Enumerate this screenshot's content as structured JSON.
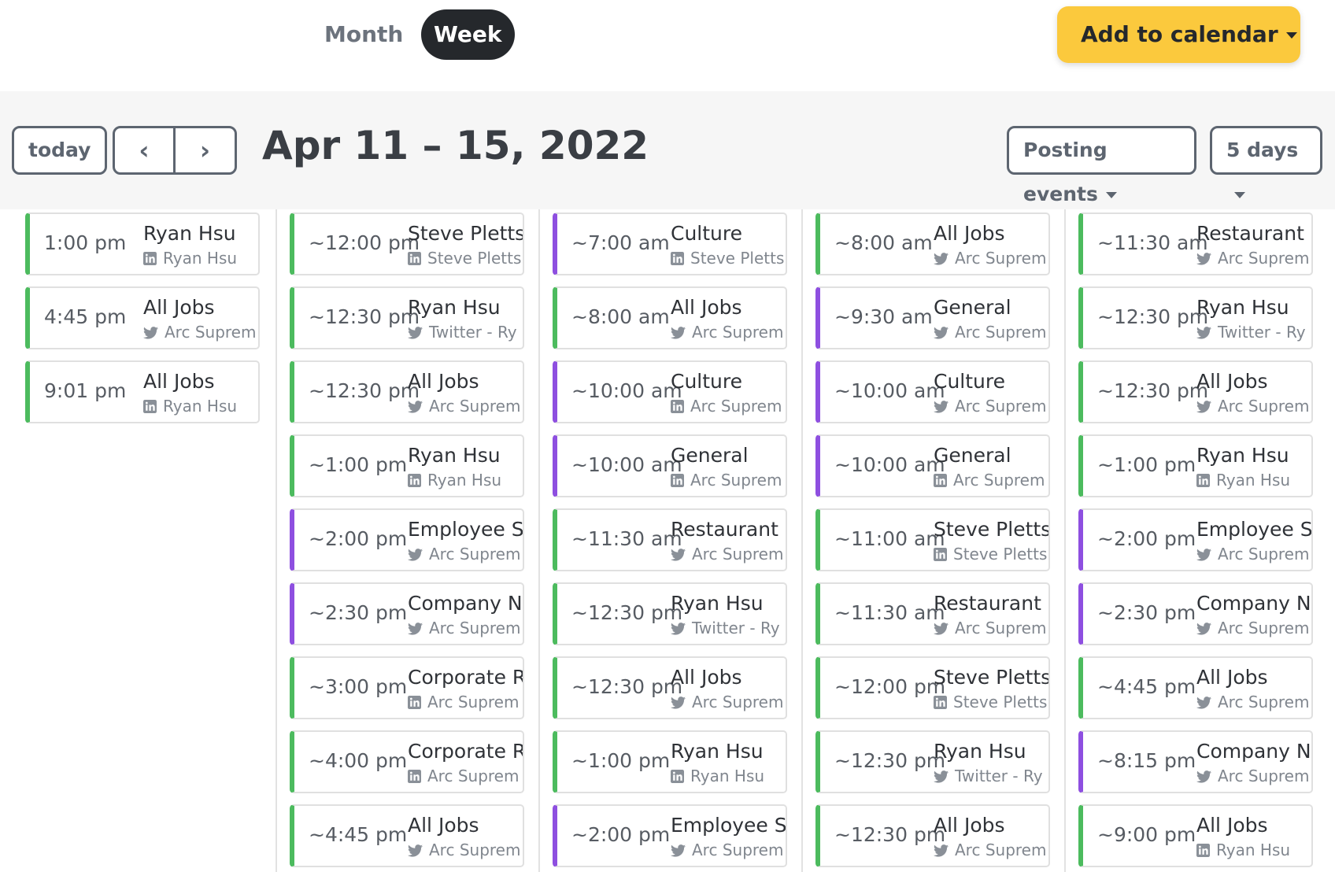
{
  "header": {
    "tabs": [
      "Month",
      "Week"
    ],
    "active_tab": 1,
    "add_button": "Add to calendar"
  },
  "toolbar": {
    "today": "today",
    "prev": "‹",
    "next": "›",
    "range": "Apr 11 – 15, 2022",
    "filter": "Posting events",
    "view": "5 days"
  },
  "columns": [
    {
      "events": [
        {
          "time": "1:00 pm",
          "title": "Ryan Hsu",
          "icon": "linkedin",
          "account": "Ryan Hsu",
          "color": "#4cbb5e"
        },
        {
          "time": "4:45 pm",
          "title": "All Jobs",
          "icon": "twitter",
          "account": "Arc Suprem",
          "color": "#4cbb5e"
        },
        {
          "time": "9:01 pm",
          "title": "All Jobs",
          "icon": "linkedin",
          "account": "Ryan Hsu",
          "color": "#4cbb5e"
        }
      ]
    },
    {
      "events": [
        {
          "time": "~12:00 pm",
          "title": "Steve Pletts",
          "icon": "linkedin",
          "account": "Steve Pletts",
          "color": "#4cbb5e"
        },
        {
          "time": "~12:30 pm",
          "title": "Ryan Hsu",
          "icon": "twitter",
          "account": "Twitter - Ry",
          "color": "#4cbb5e"
        },
        {
          "time": "~12:30 pm",
          "title": "All Jobs",
          "icon": "twitter",
          "account": "Arc Suprem",
          "color": "#4cbb5e"
        },
        {
          "time": "~1:00 pm",
          "title": "Ryan Hsu",
          "icon": "linkedin",
          "account": "Ryan Hsu",
          "color": "#4cbb5e"
        },
        {
          "time": "~2:00 pm",
          "title": "Employee S",
          "icon": "twitter",
          "account": "Arc Suprem",
          "color": "#8e4fe0"
        },
        {
          "time": "~2:30 pm",
          "title": "Company N",
          "icon": "twitter",
          "account": "Arc Suprem",
          "color": "#8e4fe0"
        },
        {
          "time": "~3:00 pm",
          "title": "Corporate R",
          "icon": "linkedin",
          "account": "Arc Suprem",
          "color": "#4cbb5e"
        },
        {
          "time": "~4:00 pm",
          "title": "Corporate R",
          "icon": "linkedin",
          "account": "Arc Suprem",
          "color": "#4cbb5e"
        },
        {
          "time": "~4:45 pm",
          "title": "All Jobs",
          "icon": "twitter",
          "account": "Arc Suprem",
          "color": "#4cbb5e"
        }
      ]
    },
    {
      "events": [
        {
          "time": "~7:00 am",
          "title": "Culture",
          "icon": "linkedin",
          "account": "Steve Pletts",
          "color": "#8e4fe0"
        },
        {
          "time": "~8:00 am",
          "title": "All Jobs",
          "icon": "twitter",
          "account": "Arc Suprem",
          "color": "#4cbb5e"
        },
        {
          "time": "~10:00 am",
          "title": "Culture",
          "icon": "linkedin",
          "account": "Arc Suprem",
          "color": "#8e4fe0"
        },
        {
          "time": "~10:00 am",
          "title": "General",
          "icon": "linkedin",
          "account": "Arc Suprem",
          "color": "#8e4fe0"
        },
        {
          "time": "~11:30 am",
          "title": "Restaurant",
          "icon": "twitter",
          "account": "Arc Suprem",
          "color": "#4cbb5e"
        },
        {
          "time": "~12:30 pm",
          "title": "Ryan Hsu",
          "icon": "twitter",
          "account": "Twitter - Ry",
          "color": "#4cbb5e"
        },
        {
          "time": "~12:30 pm",
          "title": "All Jobs",
          "icon": "twitter",
          "account": "Arc Suprem",
          "color": "#4cbb5e"
        },
        {
          "time": "~1:00 pm",
          "title": "Ryan Hsu",
          "icon": "linkedin",
          "account": "Ryan Hsu",
          "color": "#4cbb5e"
        },
        {
          "time": "~2:00 pm",
          "title": "Employee S",
          "icon": "twitter",
          "account": "Arc Suprem",
          "color": "#8e4fe0"
        }
      ]
    },
    {
      "events": [
        {
          "time": "~8:00 am",
          "title": "All Jobs",
          "icon": "twitter",
          "account": "Arc Suprem",
          "color": "#4cbb5e"
        },
        {
          "time": "~9:30 am",
          "title": "General",
          "icon": "twitter",
          "account": "Arc Suprem",
          "color": "#8e4fe0"
        },
        {
          "time": "~10:00 am",
          "title": "Culture",
          "icon": "twitter",
          "account": "Arc Suprem",
          "color": "#8e4fe0"
        },
        {
          "time": "~10:00 am",
          "title": "General",
          "icon": "linkedin",
          "account": "Arc Suprem",
          "color": "#8e4fe0"
        },
        {
          "time": "~11:00 am",
          "title": "Steve Pletts",
          "icon": "linkedin",
          "account": "Steve Pletts",
          "color": "#4cbb5e"
        },
        {
          "time": "~11:30 am",
          "title": "Restaurant",
          "icon": "twitter",
          "account": "Arc Suprem",
          "color": "#4cbb5e"
        },
        {
          "time": "~12:00 pm",
          "title": "Steve Pletts",
          "icon": "linkedin",
          "account": "Steve Pletts",
          "color": "#4cbb5e"
        },
        {
          "time": "~12:30 pm",
          "title": "Ryan Hsu",
          "icon": "twitter",
          "account": "Twitter - Ry",
          "color": "#4cbb5e"
        },
        {
          "time": "~12:30 pm",
          "title": "All Jobs",
          "icon": "twitter",
          "account": "Arc Suprem",
          "color": "#4cbb5e"
        }
      ]
    },
    {
      "events": [
        {
          "time": "~11:30 am",
          "title": "Restaurant",
          "icon": "twitter",
          "account": "Arc Suprem",
          "color": "#4cbb5e"
        },
        {
          "time": "~12:30 pm",
          "title": "Ryan Hsu",
          "icon": "twitter",
          "account": "Twitter - Ry",
          "color": "#4cbb5e"
        },
        {
          "time": "~12:30 pm",
          "title": "All Jobs",
          "icon": "twitter",
          "account": "Arc Suprem",
          "color": "#4cbb5e"
        },
        {
          "time": "~1:00 pm",
          "title": "Ryan Hsu",
          "icon": "linkedin",
          "account": "Ryan Hsu",
          "color": "#4cbb5e"
        },
        {
          "time": "~2:00 pm",
          "title": "Employee S",
          "icon": "twitter",
          "account": "Arc Suprem",
          "color": "#8e4fe0"
        },
        {
          "time": "~2:30 pm",
          "title": "Company N",
          "icon": "twitter",
          "account": "Arc Suprem",
          "color": "#8e4fe0"
        },
        {
          "time": "~4:45 pm",
          "title": "All Jobs",
          "icon": "twitter",
          "account": "Arc Suprem",
          "color": "#4cbb5e"
        },
        {
          "time": "~8:15 pm",
          "title": "Company N",
          "icon": "twitter",
          "account": "Arc Suprem",
          "color": "#8e4fe0"
        },
        {
          "time": "~9:00 pm",
          "title": "All Jobs",
          "icon": "linkedin",
          "account": "Ryan Hsu",
          "color": "#4cbb5e"
        }
      ]
    }
  ]
}
